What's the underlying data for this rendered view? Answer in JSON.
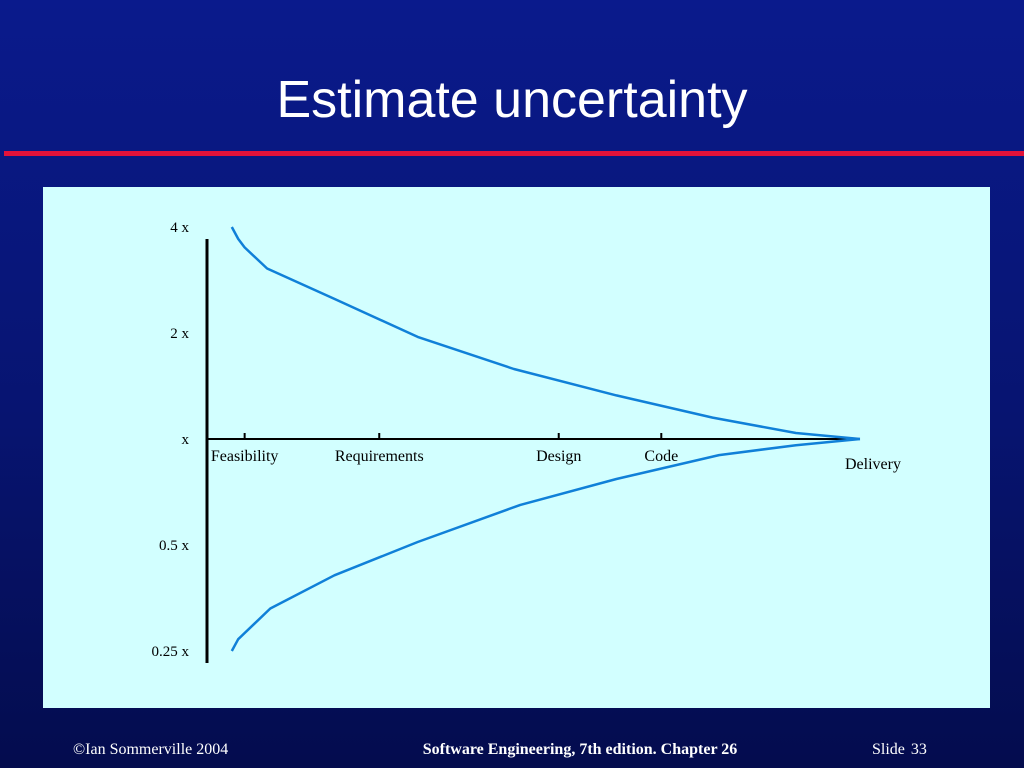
{
  "slide": {
    "title": "Estimate uncertainty",
    "footer_left": "©Ian Sommerville 2004",
    "footer_center": "Software Engineering, 7th edition. Chapter 26",
    "footer_slide_label": "Slide",
    "footer_slide_number": "33"
  },
  "colors": {
    "background": "#071470",
    "title_rule": "#e2123a",
    "panel": "#d2ffff",
    "curve": "#1080d8",
    "axis": "#000000"
  },
  "diagram": {
    "y_levels": [
      {
        "label": "4 x",
        "factor": 4
      },
      {
        "label": "2 x",
        "factor": 2
      },
      {
        "label": "x",
        "factor": 1
      },
      {
        "label": "0.5 x",
        "factor": 0.5
      },
      {
        "label": "0.25 x",
        "factor": 0.25
      }
    ],
    "phases": [
      {
        "label": "Feasibility",
        "position": 0.04
      },
      {
        "label": "Requirements",
        "position": 0.25
      },
      {
        "label": "Design",
        "position": 0.53
      },
      {
        "label": "Code",
        "position": 0.69
      },
      {
        "label": "Delivery",
        "position": 1.0
      }
    ],
    "upper_curve": [
      [
        0.02,
        4.0
      ],
      [
        0.03,
        3.7
      ],
      [
        0.04,
        3.5
      ],
      [
        0.075,
        3.05
      ],
      [
        0.18,
        2.5
      ],
      [
        0.31,
        1.95
      ],
      [
        0.46,
        1.58
      ],
      [
        0.62,
        1.33
      ],
      [
        0.77,
        1.15
      ],
      [
        0.9,
        1.04
      ],
      [
        1.0,
        1.0
      ]
    ],
    "lower_curve": [
      [
        0.02,
        0.25
      ],
      [
        0.03,
        0.27
      ],
      [
        0.08,
        0.33
      ],
      [
        0.18,
        0.41
      ],
      [
        0.31,
        0.51
      ],
      [
        0.47,
        0.65
      ],
      [
        0.62,
        0.77
      ],
      [
        0.78,
        0.9
      ],
      [
        0.9,
        0.96
      ],
      [
        1.0,
        1.0
      ]
    ]
  }
}
